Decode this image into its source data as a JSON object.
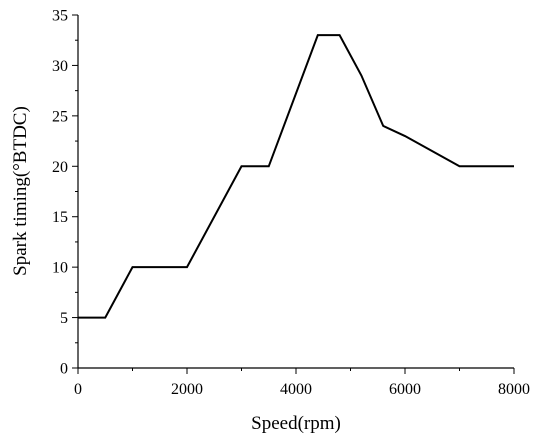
{
  "chart_data": {
    "type": "line",
    "title": "",
    "xlabel": "Speed(rpm)",
    "ylabel": "Spark timing(°BTDC)",
    "xlim": [
      0,
      8000
    ],
    "ylim": [
      0,
      35
    ],
    "x_ticks": [
      0,
      2000,
      4000,
      6000,
      8000
    ],
    "y_ticks": [
      0,
      5,
      10,
      15,
      20,
      25,
      30,
      35
    ],
    "grid": false,
    "legend": "none",
    "series": [
      {
        "color": "#000000",
        "x": [
          0,
          500,
          1000,
          2000,
          3000,
          3500,
          4400,
          4800,
          5200,
          5600,
          6000,
          7000,
          8000
        ],
        "y": [
          5,
          5,
          10,
          10,
          20,
          20,
          33,
          33,
          29,
          24,
          23,
          20,
          20
        ]
      }
    ]
  }
}
